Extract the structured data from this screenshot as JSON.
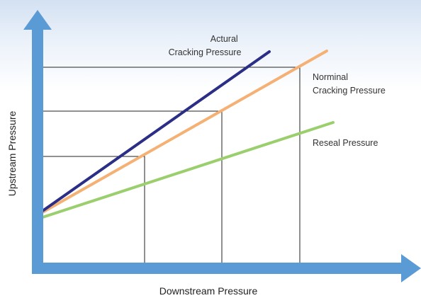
{
  "diagram": {
    "x_axis_label": "Downstream Pressure",
    "y_axis_label": "Upstream Pressure",
    "lines": [
      {
        "name": "actual",
        "label_lines": [
          "Actural",
          "Cracking Pressure"
        ],
        "color": "#2b2e86"
      },
      {
        "name": "nominal",
        "label_lines": [
          "Norminal",
          "Cracking Pressure"
        ],
        "color": "#f5b074"
      },
      {
        "name": "reseal",
        "label_lines": [
          "Reseal Pressure"
        ],
        "color": "#9bcf6d"
      }
    ],
    "colors": {
      "axis": "#5b9bd5",
      "guide_lines": "#222222",
      "background_top": "#d3e1f2"
    }
  }
}
